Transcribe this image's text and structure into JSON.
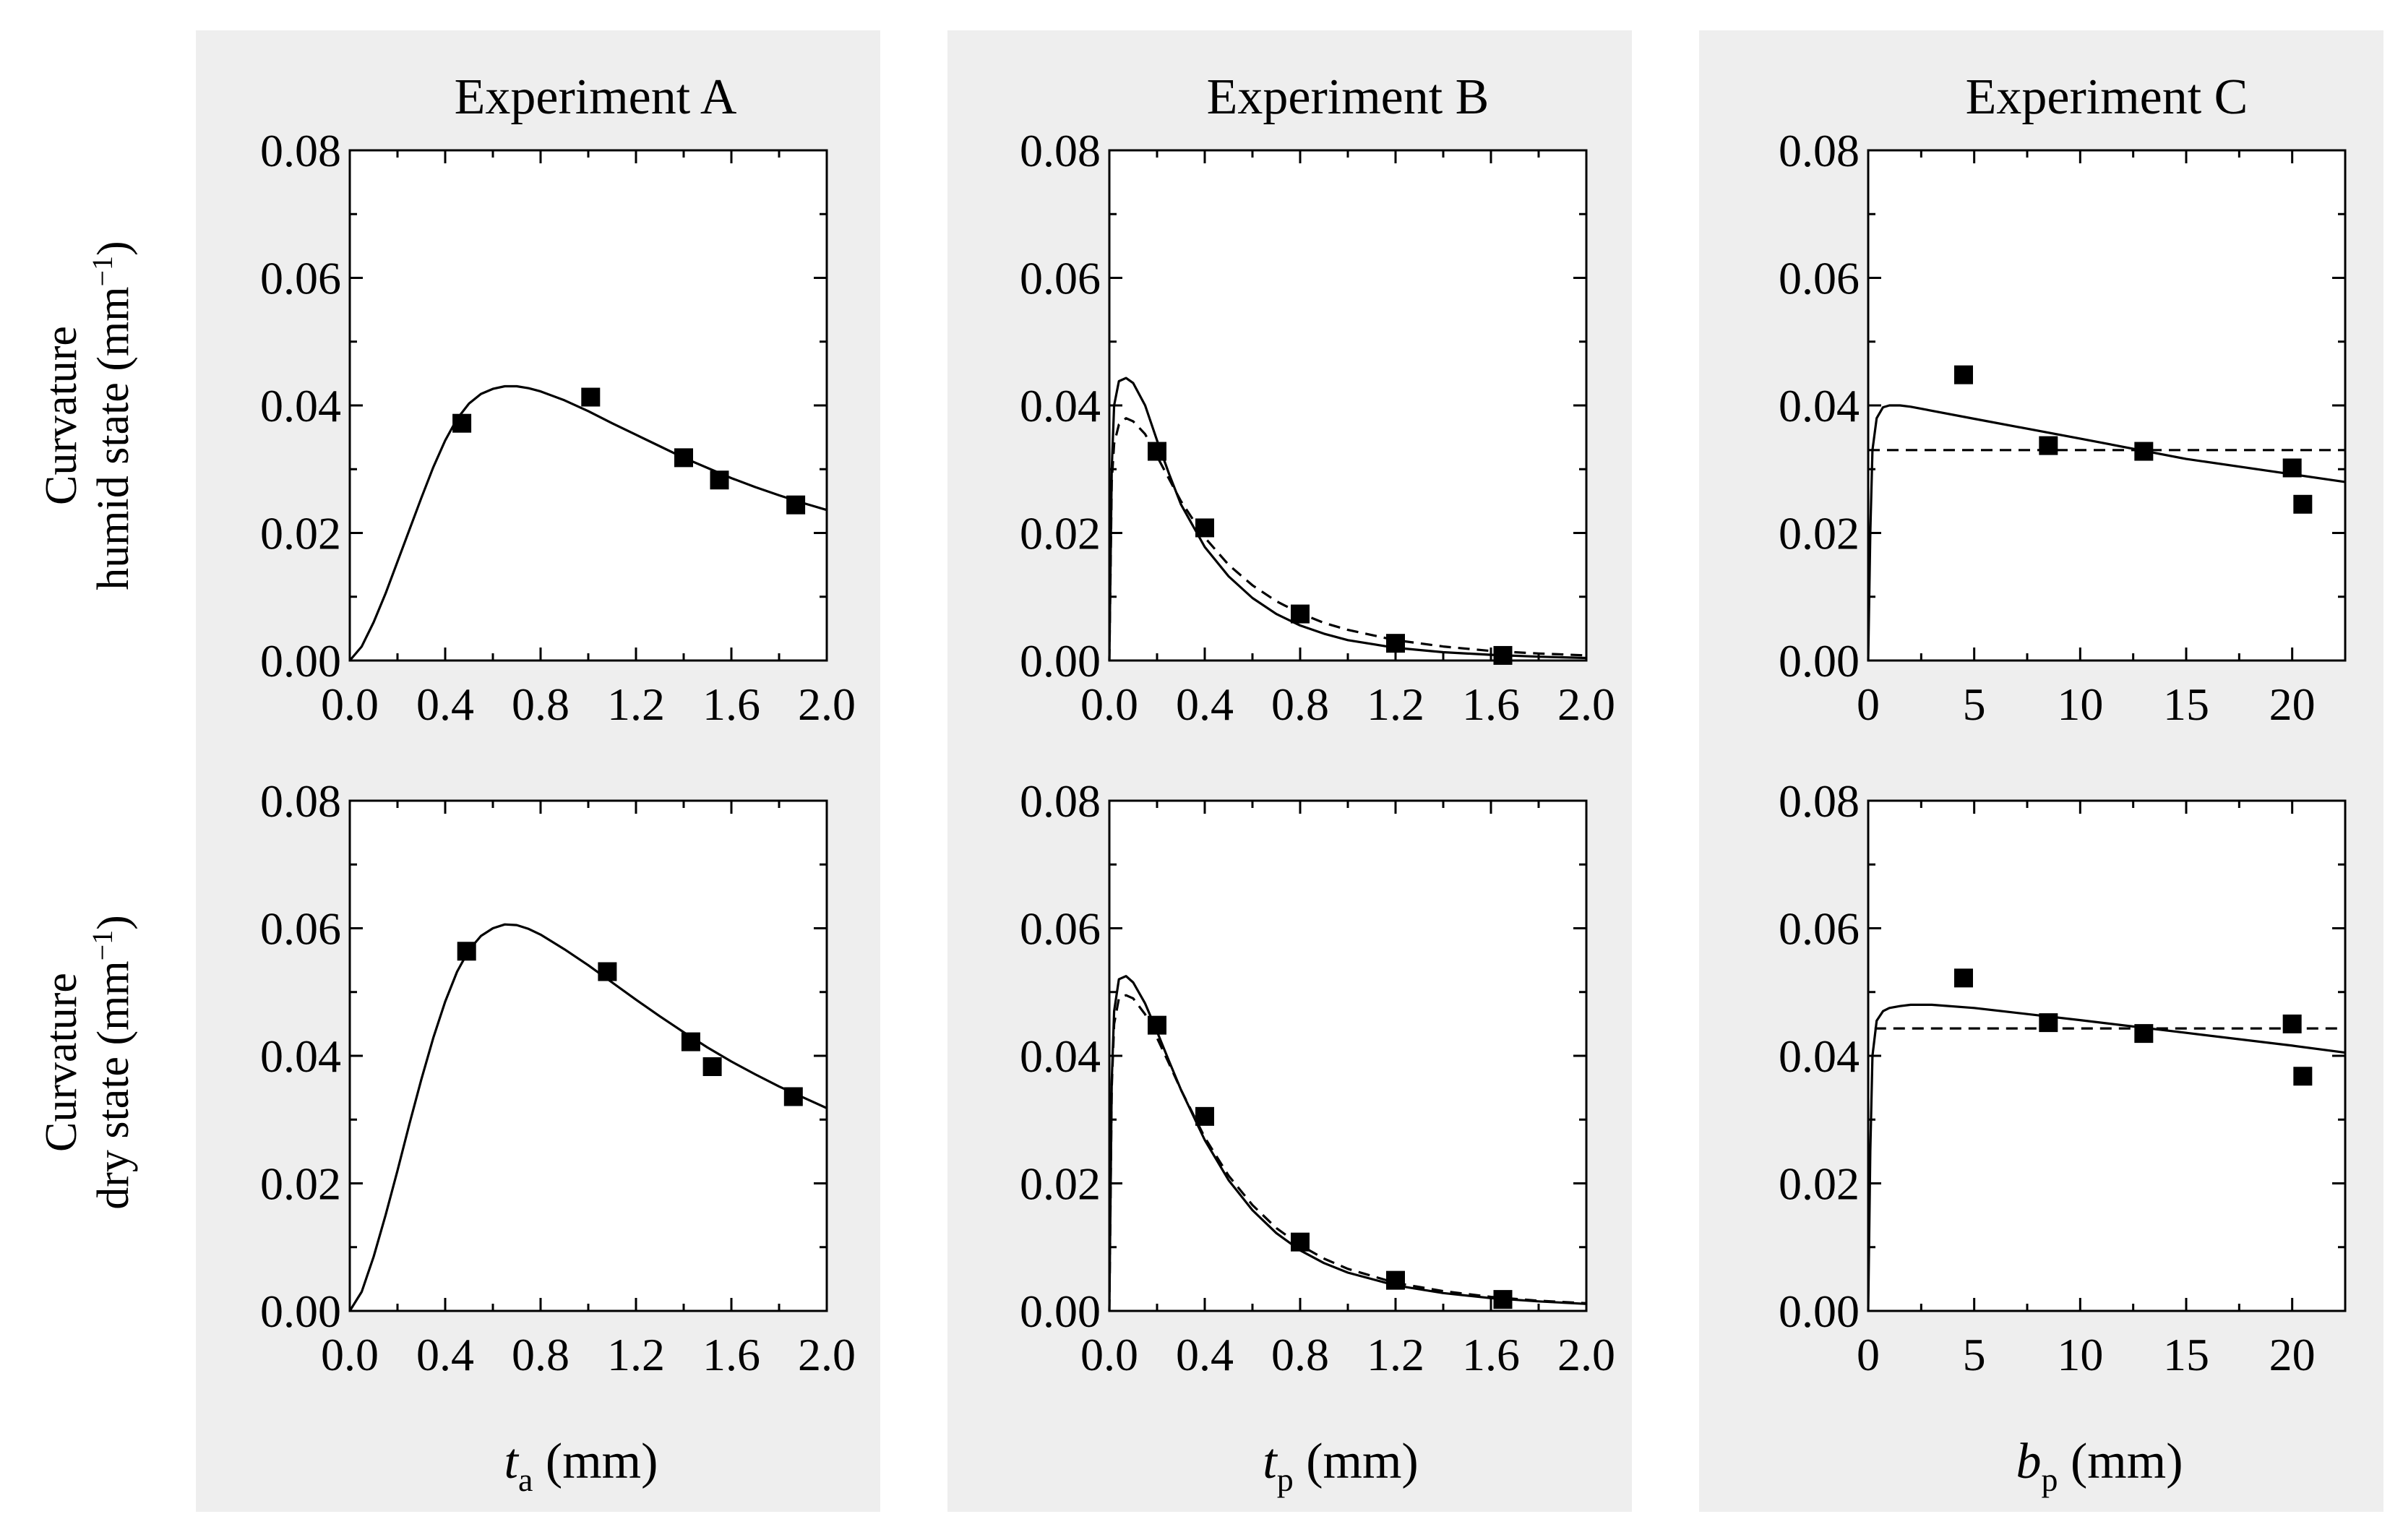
{
  "figure": {
    "panel_background": "#eeeeee",
    "row_labels": {
      "top": {
        "line1": "Curvature",
        "line2": "humid state (mm",
        "exp": "−1",
        "close": ")"
      },
      "bottom": {
        "line1": "Curvature",
        "line2": "dry state (mm",
        "exp": "−1",
        "close": ")"
      }
    }
  },
  "chart_data": [
    {
      "id": "A-humid",
      "type": "scatter",
      "title": "Experiment A",
      "xlabel": "",
      "ylabel": "Curvature humid state (mm−1)",
      "xlim": [
        0,
        2.0
      ],
      "ylim": [
        0,
        0.08
      ],
      "xticks": [
        0,
        0.4,
        0.8,
        1.2,
        1.6,
        2.0
      ],
      "xticklabels": [
        "0.0",
        "0.4",
        "0.8",
        "1.2",
        "1.6",
        "2.0"
      ],
      "yticks": [
        0,
        0.02,
        0.04,
        0.06,
        0.08
      ],
      "yticklabels": [
        "0.00",
        "0.02",
        "0.04",
        "0.06",
        "0.08"
      ],
      "points": [
        [
          0.47,
          0.0372
        ],
        [
          1.01,
          0.0413
        ],
        [
          1.4,
          0.0318
        ],
        [
          1.55,
          0.0283
        ],
        [
          1.87,
          0.0244
        ]
      ],
      "series": [
        {
          "name": "model",
          "style": "solid",
          "x": [
            0,
            0.05,
            0.1,
            0.15,
            0.2,
            0.25,
            0.3,
            0.35,
            0.4,
            0.45,
            0.5,
            0.55,
            0.6,
            0.65,
            0.7,
            0.75,
            0.8,
            0.9,
            1.0,
            1.1,
            1.2,
            1.3,
            1.4,
            1.5,
            1.6,
            1.7,
            1.8,
            1.9,
            2.0
          ],
          "y": [
            0,
            0.0022,
            0.006,
            0.0105,
            0.0155,
            0.0205,
            0.0255,
            0.0303,
            0.0345,
            0.0379,
            0.0403,
            0.0418,
            0.0426,
            0.043,
            0.043,
            0.0427,
            0.0422,
            0.0408,
            0.0391,
            0.0372,
            0.0354,
            0.0336,
            0.0318,
            0.0302,
            0.0286,
            0.0272,
            0.0259,
            0.0247,
            0.0236
          ]
        }
      ]
    },
    {
      "id": "B-humid",
      "type": "scatter",
      "title": "Experiment B",
      "xlabel": "",
      "ylabel": "",
      "xlim": [
        0,
        2.0
      ],
      "ylim": [
        0,
        0.08
      ],
      "xticks": [
        0,
        0.4,
        0.8,
        1.2,
        1.6,
        2.0
      ],
      "xticklabels": [
        "0.0",
        "0.4",
        "0.8",
        "1.2",
        "1.6",
        "2.0"
      ],
      "yticks": [
        0,
        0.02,
        0.04,
        0.06,
        0.08
      ],
      "yticklabels": [
        "0.00",
        "0.02",
        "0.04",
        "0.06",
        "0.08"
      ],
      "points": [
        [
          0.2,
          0.0328
        ],
        [
          0.4,
          0.0208
        ],
        [
          0.8,
          0.0073
        ],
        [
          1.2,
          0.0027
        ],
        [
          1.65,
          0.0008
        ]
      ],
      "series": [
        {
          "name": "model-solid",
          "style": "solid",
          "x": [
            0,
            0.01,
            0.02,
            0.04,
            0.07,
            0.1,
            0.15,
            0.2,
            0.25,
            0.3,
            0.4,
            0.5,
            0.6,
            0.7,
            0.8,
            0.9,
            1.0,
            1.2,
            1.4,
            1.6,
            1.8,
            2.0
          ],
          "y": [
            0,
            0.03,
            0.04,
            0.0438,
            0.0443,
            0.0435,
            0.04,
            0.0345,
            0.0293,
            0.0245,
            0.0178,
            0.0132,
            0.0098,
            0.0073,
            0.0055,
            0.0042,
            0.0032,
            0.002,
            0.0013,
            0.0009,
            0.0006,
            0.0004
          ]
        },
        {
          "name": "model-dashed",
          "style": "dashed",
          "x": [
            0,
            0.01,
            0.02,
            0.04,
            0.07,
            0.1,
            0.15,
            0.2,
            0.25,
            0.3,
            0.4,
            0.5,
            0.6,
            0.7,
            0.8,
            0.9,
            1.0,
            1.2,
            1.4,
            1.6,
            1.8,
            2.0
          ],
          "y": [
            0,
            0.028,
            0.034,
            0.037,
            0.038,
            0.0375,
            0.0355,
            0.032,
            0.0285,
            0.025,
            0.0193,
            0.015,
            0.0118,
            0.0093,
            0.0074,
            0.0059,
            0.0048,
            0.0032,
            0.0022,
            0.0015,
            0.0011,
            0.0008
          ]
        }
      ]
    },
    {
      "id": "C-humid",
      "type": "scatter",
      "title": "Experiment C",
      "xlabel": "",
      "ylabel": "",
      "xlim": [
        0,
        22.5
      ],
      "ylim": [
        0,
        0.08
      ],
      "xticks": [
        0,
        5,
        10,
        15,
        20
      ],
      "xticklabels": [
        "0",
        "5",
        "10",
        "15",
        "20"
      ],
      "yticks": [
        0,
        0.02,
        0.04,
        0.06,
        0.08
      ],
      "yticklabels": [
        "0.00",
        "0.02",
        "0.04",
        "0.06",
        "0.08"
      ],
      "points": [
        [
          4.5,
          0.0448
        ],
        [
          8.5,
          0.0337
        ],
        [
          13.0,
          0.0328
        ],
        [
          20.0,
          0.0302
        ],
        [
          20.5,
          0.0245
        ]
      ],
      "series": [
        {
          "name": "model-solid",
          "style": "solid",
          "x": [
            0,
            0.1,
            0.2,
            0.4,
            0.7,
            1.0,
            1.5,
            2.0,
            5,
            10,
            15,
            20,
            22.5
          ],
          "y": [
            0,
            0.02,
            0.033,
            0.038,
            0.0397,
            0.04,
            0.04,
            0.0398,
            0.0379,
            0.0348,
            0.0316,
            0.0292,
            0.028
          ]
        },
        {
          "name": "model-dashed",
          "style": "dashed",
          "x": [
            0,
            22.5
          ],
          "y": [
            0.033,
            0.033
          ]
        }
      ]
    },
    {
      "id": "A-dry",
      "type": "scatter",
      "title": "",
      "xlabel": "t",
      "xlabel_sub": "a",
      "xlabel_unit": " (mm)",
      "ylabel": "Curvature dry state (mm−1)",
      "xlim": [
        0,
        2.0
      ],
      "ylim": [
        0,
        0.08
      ],
      "xticks": [
        0,
        0.4,
        0.8,
        1.2,
        1.6,
        2.0
      ],
      "xticklabels": [
        "0.0",
        "0.4",
        "0.8",
        "1.2",
        "1.6",
        "2.0"
      ],
      "yticks": [
        0,
        0.02,
        0.04,
        0.06,
        0.08
      ],
      "yticklabels": [
        "0.00",
        "0.02",
        "0.04",
        "0.06",
        "0.08"
      ],
      "points": [
        [
          0.49,
          0.0564
        ],
        [
          1.08,
          0.0532
        ],
        [
          1.43,
          0.0422
        ],
        [
          1.52,
          0.0383
        ],
        [
          1.86,
          0.0336
        ]
      ],
      "series": [
        {
          "name": "model",
          "style": "solid",
          "x": [
            0,
            0.05,
            0.1,
            0.15,
            0.2,
            0.25,
            0.3,
            0.35,
            0.4,
            0.45,
            0.5,
            0.55,
            0.6,
            0.65,
            0.7,
            0.75,
            0.8,
            0.9,
            1.0,
            1.1,
            1.2,
            1.3,
            1.4,
            1.5,
            1.6,
            1.7,
            1.8,
            1.9,
            2.0
          ],
          "y": [
            0,
            0.003,
            0.0085,
            0.015,
            0.022,
            0.0293,
            0.0363,
            0.0428,
            0.0485,
            0.0532,
            0.0566,
            0.0588,
            0.06,
            0.0606,
            0.0605,
            0.0599,
            0.059,
            0.0567,
            0.0542,
            0.0515,
            0.0488,
            0.0462,
            0.0437,
            0.0413,
            0.0391,
            0.0371,
            0.0352,
            0.0335,
            0.0318
          ]
        }
      ]
    },
    {
      "id": "B-dry",
      "type": "scatter",
      "title": "",
      "xlabel": "t",
      "xlabel_sub": "p",
      "xlabel_unit": " (mm)",
      "ylabel": "",
      "xlim": [
        0,
        2.0
      ],
      "ylim": [
        0,
        0.08
      ],
      "xticks": [
        0,
        0.4,
        0.8,
        1.2,
        1.6,
        2.0
      ],
      "xticklabels": [
        "0.0",
        "0.4",
        "0.8",
        "1.2",
        "1.6",
        "2.0"
      ],
      "yticks": [
        0,
        0.02,
        0.04,
        0.06,
        0.08
      ],
      "yticklabels": [
        "0.00",
        "0.02",
        "0.04",
        "0.06",
        "0.08"
      ],
      "points": [
        [
          0.2,
          0.0448
        ],
        [
          0.4,
          0.0305
        ],
        [
          0.8,
          0.0108
        ],
        [
          1.2,
          0.0048
        ],
        [
          1.65,
          0.0018
        ]
      ],
      "series": [
        {
          "name": "model-solid",
          "style": "solid",
          "x": [
            0,
            0.01,
            0.02,
            0.04,
            0.07,
            0.1,
            0.15,
            0.2,
            0.25,
            0.3,
            0.4,
            0.5,
            0.6,
            0.7,
            0.8,
            0.9,
            1.0,
            1.2,
            1.4,
            1.6,
            1.8,
            2.0
          ],
          "y": [
            0,
            0.036,
            0.047,
            0.052,
            0.0525,
            0.0515,
            0.0482,
            0.0438,
            0.0392,
            0.0347,
            0.0268,
            0.0205,
            0.0158,
            0.0122,
            0.0095,
            0.0075,
            0.006,
            0.004,
            0.0028,
            0.002,
            0.0015,
            0.0011
          ]
        },
        {
          "name": "model-dashed",
          "style": "dashed",
          "x": [
            0,
            0.01,
            0.02,
            0.04,
            0.07,
            0.1,
            0.15,
            0.2,
            0.25,
            0.3,
            0.4,
            0.5,
            0.6,
            0.7,
            0.8,
            0.9,
            1.0,
            1.2,
            1.4,
            1.6,
            1.8,
            2.0
          ],
          "y": [
            0,
            0.035,
            0.045,
            0.049,
            0.0495,
            0.049,
            0.0465,
            0.0428,
            0.0388,
            0.0347,
            0.0272,
            0.0212,
            0.0166,
            0.013,
            0.0103,
            0.0082,
            0.0066,
            0.0044,
            0.0031,
            0.0022,
            0.0016,
            0.0012
          ]
        }
      ]
    },
    {
      "id": "C-dry",
      "type": "scatter",
      "title": "",
      "xlabel": "b",
      "xlabel_sub": "p",
      "xlabel_unit": " (mm)",
      "ylabel": "",
      "xlim": [
        0,
        22.5
      ],
      "ylim": [
        0,
        0.08
      ],
      "xticks": [
        0,
        5,
        10,
        15,
        20
      ],
      "xticklabels": [
        "0",
        "5",
        "10",
        "15",
        "20"
      ],
      "yticks": [
        0,
        0.02,
        0.04,
        0.06,
        0.08
      ],
      "yticklabels": [
        "0.00",
        "0.02",
        "0.04",
        "0.06",
        "0.08"
      ],
      "points": [
        [
          4.5,
          0.0522
        ],
        [
          8.5,
          0.0452
        ],
        [
          13.0,
          0.0435
        ],
        [
          20.0,
          0.045
        ],
        [
          20.5,
          0.0368
        ]
      ],
      "series": [
        {
          "name": "model-solid",
          "style": "solid",
          "x": [
            0,
            0.1,
            0.2,
            0.4,
            0.7,
            1.0,
            1.5,
            2.0,
            3.0,
            5,
            10,
            15,
            20,
            22.5
          ],
          "y": [
            0,
            0.025,
            0.04,
            0.0455,
            0.047,
            0.0475,
            0.0478,
            0.048,
            0.048,
            0.0475,
            0.0456,
            0.0436,
            0.0416,
            0.0405
          ]
        },
        {
          "name": "model-dashed",
          "style": "dashed",
          "x": [
            0.3,
            22.5
          ],
          "y": [
            0.0443,
            0.0443
          ]
        }
      ]
    }
  ]
}
